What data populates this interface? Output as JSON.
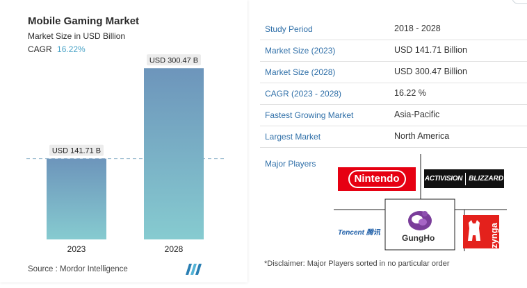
{
  "chart": {
    "title": "Mobile Gaming Market",
    "subtitle": "Market Size in USD Billion",
    "cagr_label": "CAGR",
    "cagr_value": "16.22%",
    "source": "Source : Mordor Intelligence"
  },
  "chart_data": {
    "type": "bar",
    "categories": [
      "2023",
      "2028"
    ],
    "values": [
      141.71,
      300.47
    ],
    "value_labels": [
      "USD 141.71 B",
      "USD 300.47 B"
    ],
    "title": "Mobile Gaming Market",
    "subtitle": "Market Size in USD Billion",
    "xlabel": "",
    "ylabel": "",
    "ylim": [
      0,
      330
    ],
    "reference_line_value": 141.71,
    "grid": false,
    "bar_colors": [
      "#6d95bb",
      "#86cbd0"
    ]
  },
  "summary": {
    "rows": [
      {
        "key": "Study Period",
        "value": "2018 - 2028"
      },
      {
        "key": "Market Size (2023)",
        "value": "USD 141.71 Billion"
      },
      {
        "key": "Market Size (2028)",
        "value": "USD 300.47 Billion"
      },
      {
        "key": "CAGR (2023 - 2028)",
        "value": "16.22 %"
      },
      {
        "key": "Fastest Growing Market",
        "value": "Asia-Pacific"
      },
      {
        "key": "Largest Market",
        "value": "North America"
      }
    ],
    "major_players_label": "Major Players",
    "disclaimer": "*Disclaimer: Major Players sorted in no particular order"
  },
  "players": {
    "nintendo": "Nintendo",
    "activision": "ACTIVISION",
    "blizzard": "BLIZZARD",
    "tencent": "Tencent 腾讯",
    "gungho": "GungHo",
    "zynga": "zynga"
  },
  "colors": {
    "accent_text": "#2f6fa8",
    "cagr_value": "#4aa3c7",
    "nintendo_red": "#e60012"
  }
}
